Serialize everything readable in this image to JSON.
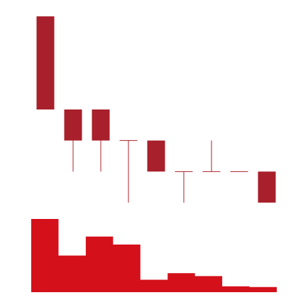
{
  "chart_data": [
    {
      "type": "candlestick",
      "title": "",
      "xlabel": "",
      "ylabel": "",
      "grid": false,
      "legend": "none",
      "candles": [
        {
          "open": 100,
          "close": 70,
          "high": 100,
          "low": 70
        },
        {
          "open": 70,
          "close": 60,
          "high": 70,
          "low": 50
        },
        {
          "open": 70,
          "close": 60,
          "high": 70,
          "low": 50
        },
        {
          "open": 60,
          "close": 60,
          "high": 60,
          "low": 40
        },
        {
          "open": 60,
          "close": 50,
          "high": 60,
          "low": 50
        },
        {
          "open": 50,
          "close": 50,
          "high": 50,
          "low": 40
        },
        {
          "open": 50,
          "close": 50,
          "high": 60,
          "low": 50
        },
        {
          "open": 50,
          "close": 50,
          "high": 50,
          "low": 50
        },
        {
          "open": 50,
          "close": 40,
          "high": 50,
          "low": 40
        }
      ],
      "ylim": [
        40,
        100
      ],
      "colors": {
        "candle": "#a8202b"
      }
    },
    {
      "type": "area",
      "title": "",
      "xlabel": "",
      "ylabel": "",
      "grid": false,
      "legend": "none",
      "values": [
        100,
        50,
        76,
        65,
        17,
        26,
        22,
        8,
        7
      ],
      "ylim": [
        0,
        100
      ],
      "colors": {
        "fill": "#d4101b"
      }
    }
  ]
}
